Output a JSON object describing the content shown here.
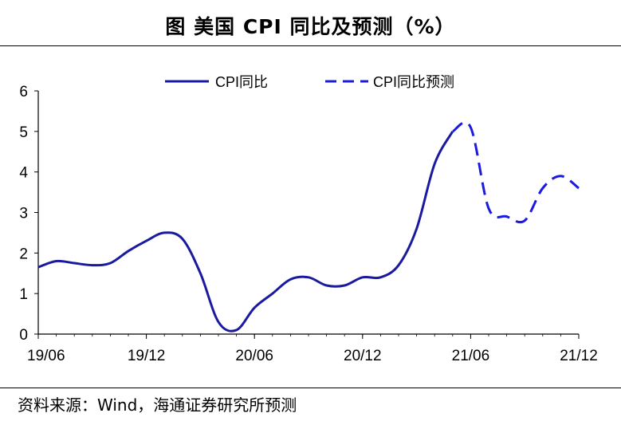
{
  "header": {
    "title": "图 美国 CPI 同比及预测（%）"
  },
  "footer": {
    "source": "资料来源：Wind，海通证券研究所预测"
  },
  "chart_data": {
    "type": "line",
    "title": "图 美国 CPI 同比及预测（%）",
    "xlabel": "",
    "ylabel": "",
    "ylim": [
      0,
      6
    ],
    "yticks": [
      "0",
      "1",
      "2",
      "3",
      "4",
      "5",
      "6"
    ],
    "xticks": [
      "19/06",
      "19/12",
      "20/06",
      "20/12",
      "21/06",
      "21/12"
    ],
    "grid": false,
    "legend": "top",
    "series": [
      {
        "name": "CPI同比",
        "style": "solid",
        "color": "#1a1aa0",
        "x": [
          "19/06",
          "19/07",
          "19/08",
          "19/09",
          "19/10",
          "19/11",
          "19/12",
          "20/01",
          "20/02",
          "20/03",
          "20/04",
          "20/05",
          "20/06",
          "20/07",
          "20/08",
          "20/09",
          "20/10",
          "20/11",
          "20/12",
          "21/01",
          "21/02",
          "21/03",
          "21/04",
          "21/05"
        ],
        "values": [
          1.65,
          1.8,
          1.75,
          1.7,
          1.75,
          2.05,
          2.3,
          2.5,
          2.35,
          1.5,
          0.3,
          0.1,
          0.65,
          1.0,
          1.35,
          1.4,
          1.2,
          1.2,
          1.4,
          1.4,
          1.7,
          2.6,
          4.2,
          5.0
        ]
      },
      {
        "name": "CPI同比预测",
        "style": "dashed",
        "color": "#1a1ae0",
        "x": [
          "21/05",
          "21/06",
          "21/07",
          "21/08",
          "21/09",
          "21/10",
          "21/11",
          "21/12"
        ],
        "values": [
          5.0,
          5.1,
          3.1,
          2.9,
          2.8,
          3.6,
          3.9,
          3.6
        ]
      }
    ]
  }
}
